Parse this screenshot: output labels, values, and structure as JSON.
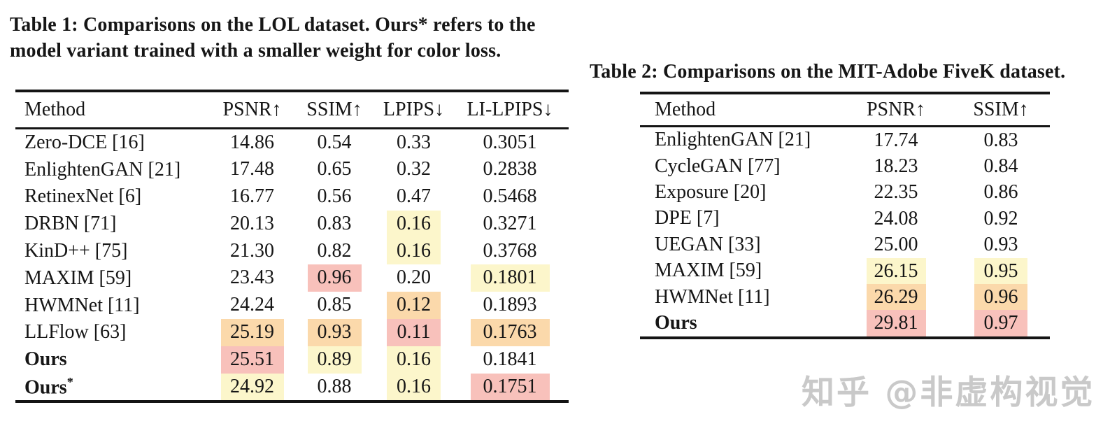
{
  "colors": {
    "ink": "#161616",
    "rule": "#141414",
    "highlight_yellow": "#fcf6cb",
    "highlight_orange": "#fbd9ab",
    "highlight_pink": "#f8c1bb",
    "watermark_gray": "#c9c9c9"
  },
  "table1": {
    "caption": "Table 1: Comparisons on the LOL dataset. Ours* refers to the model variant trained with a smaller weight for color loss.",
    "columns": [
      "Method",
      "PSNR↑",
      "SSIM↑",
      "LPIPS↓",
      "LI-LPIPS↓"
    ],
    "rows": [
      {
        "method": "Zero-DCE [16]",
        "bold": false,
        "cells": [
          {
            "v": "14.86",
            "hl": ""
          },
          {
            "v": "0.54",
            "hl": ""
          },
          {
            "v": "0.33",
            "hl": ""
          },
          {
            "v": "0.3051",
            "hl": ""
          }
        ]
      },
      {
        "method": "EnlightenGAN [21]",
        "bold": false,
        "cells": [
          {
            "v": "17.48",
            "hl": ""
          },
          {
            "v": "0.65",
            "hl": ""
          },
          {
            "v": "0.32",
            "hl": ""
          },
          {
            "v": "0.2838",
            "hl": ""
          }
        ]
      },
      {
        "method": "RetinexNet [6]",
        "bold": false,
        "cells": [
          {
            "v": "16.77",
            "hl": ""
          },
          {
            "v": "0.56",
            "hl": ""
          },
          {
            "v": "0.47",
            "hl": ""
          },
          {
            "v": "0.5468",
            "hl": ""
          }
        ]
      },
      {
        "method": "DRBN [71]",
        "bold": false,
        "cells": [
          {
            "v": "20.13",
            "hl": ""
          },
          {
            "v": "0.83",
            "hl": ""
          },
          {
            "v": "0.16",
            "hl": "yellow"
          },
          {
            "v": "0.3271",
            "hl": ""
          }
        ]
      },
      {
        "method": "KinD++ [75]",
        "bold": false,
        "cells": [
          {
            "v": "21.30",
            "hl": ""
          },
          {
            "v": "0.82",
            "hl": ""
          },
          {
            "v": "0.16",
            "hl": "yellow"
          },
          {
            "v": "0.3768",
            "hl": ""
          }
        ]
      },
      {
        "method": "MAXIM [59]",
        "bold": false,
        "cells": [
          {
            "v": "23.43",
            "hl": ""
          },
          {
            "v": "0.96",
            "hl": "pink"
          },
          {
            "v": "0.20",
            "hl": ""
          },
          {
            "v": "0.1801",
            "hl": "yellow"
          }
        ]
      },
      {
        "method": "HWMNet [11]",
        "bold": false,
        "cells": [
          {
            "v": "24.24",
            "hl": ""
          },
          {
            "v": "0.85",
            "hl": ""
          },
          {
            "v": "0.12",
            "hl": "orange"
          },
          {
            "v": "0.1893",
            "hl": ""
          }
        ]
      },
      {
        "method": "LLFlow [63]",
        "bold": false,
        "cells": [
          {
            "v": "25.19",
            "hl": "orange"
          },
          {
            "v": "0.93",
            "hl": "orange"
          },
          {
            "v": "0.11",
            "hl": "pink"
          },
          {
            "v": "0.1763",
            "hl": "orange"
          }
        ]
      },
      {
        "method": "Ours",
        "bold": true,
        "cells": [
          {
            "v": "25.51",
            "hl": "pink"
          },
          {
            "v": "0.89",
            "hl": "yellow"
          },
          {
            "v": "0.16",
            "hl": "yellow"
          },
          {
            "v": "0.1841",
            "hl": ""
          }
        ]
      },
      {
        "method": "Ours*",
        "bold": true,
        "cells": [
          {
            "v": "24.92",
            "hl": "yellow"
          },
          {
            "v": "0.88",
            "hl": ""
          },
          {
            "v": "0.16",
            "hl": "yellow"
          },
          {
            "v": "0.1751",
            "hl": "pink"
          }
        ]
      }
    ]
  },
  "table2": {
    "caption": "Table 2: Comparisons on the MIT-Adobe FiveK dataset.",
    "columns": [
      "Method",
      "PSNR↑",
      "SSIM↑"
    ],
    "rows": [
      {
        "method": "EnlightenGAN [21]",
        "bold": false,
        "cells": [
          {
            "v": "17.74",
            "hl": ""
          },
          {
            "v": "0.83",
            "hl": ""
          }
        ]
      },
      {
        "method": "CycleGAN [77]",
        "bold": false,
        "cells": [
          {
            "v": "18.23",
            "hl": ""
          },
          {
            "v": "0.84",
            "hl": ""
          }
        ]
      },
      {
        "method": "Exposure [20]",
        "bold": false,
        "cells": [
          {
            "v": "22.35",
            "hl": ""
          },
          {
            "v": "0.86",
            "hl": ""
          }
        ]
      },
      {
        "method": "DPE [7]",
        "bold": false,
        "cells": [
          {
            "v": "24.08",
            "hl": ""
          },
          {
            "v": "0.92",
            "hl": ""
          }
        ]
      },
      {
        "method": "UEGAN [33]",
        "bold": false,
        "cells": [
          {
            "v": "25.00",
            "hl": ""
          },
          {
            "v": "0.93",
            "hl": ""
          }
        ]
      },
      {
        "method": "MAXIM [59]",
        "bold": false,
        "cells": [
          {
            "v": "26.15",
            "hl": "yellow"
          },
          {
            "v": "0.95",
            "hl": "yellow"
          }
        ]
      },
      {
        "method": "HWMNet [11]",
        "bold": false,
        "cells": [
          {
            "v": "26.29",
            "hl": "orange"
          },
          {
            "v": "0.96",
            "hl": "orange"
          }
        ]
      },
      {
        "method": "Ours",
        "bold": true,
        "cells": [
          {
            "v": "29.81",
            "hl": "pink"
          },
          {
            "v": "0.97",
            "hl": "pink"
          }
        ]
      }
    ]
  },
  "watermark": {
    "text": "知乎 @非虚构视觉"
  }
}
